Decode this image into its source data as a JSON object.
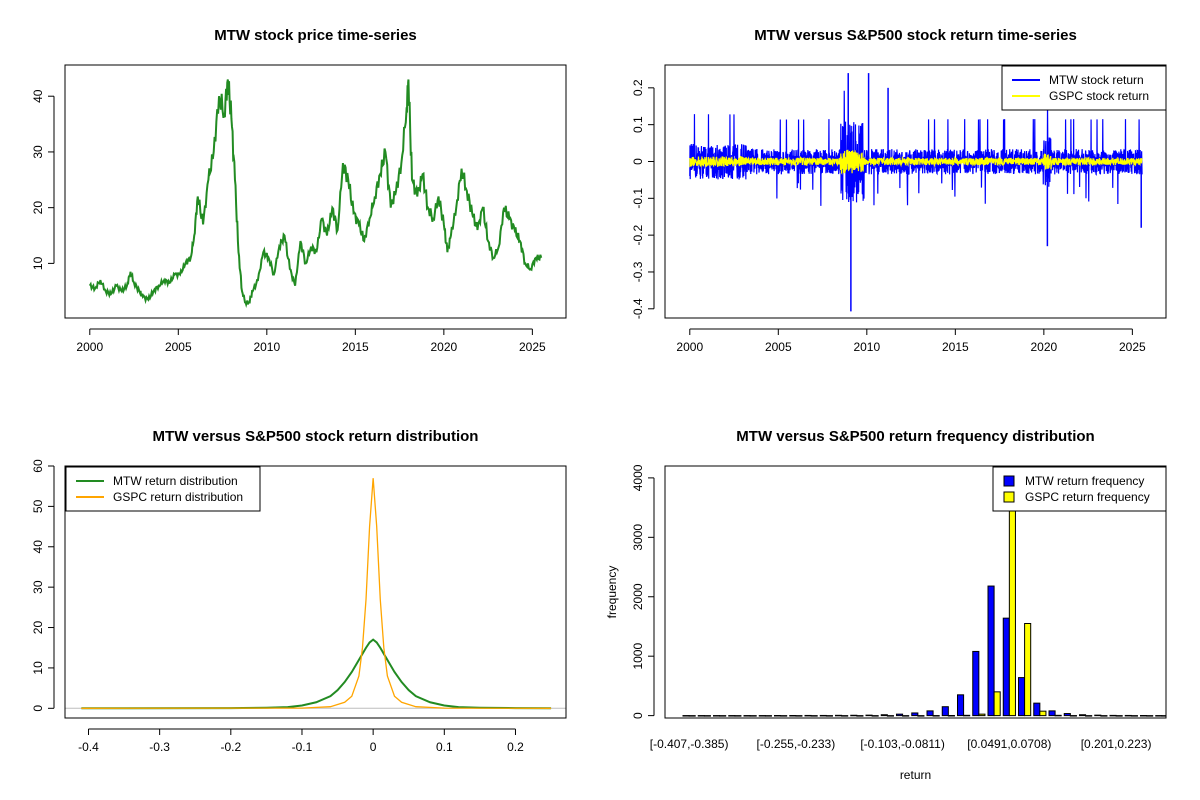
{
  "chart_data": [
    {
      "type": "line",
      "title": "MTW stock price time-series",
      "xlabel": "",
      "ylabel": "",
      "xlim": [
        1998.6,
        2026.9
      ],
      "ylim": [
        0.2,
        45.6
      ],
      "xticks": [
        2000,
        2005,
        2010,
        2015,
        2020,
        2025
      ],
      "yticks": [
        10,
        20,
        30,
        40
      ],
      "color": "#228B22",
      "series": [
        {
          "x": [
            2000.0,
            2000.3,
            2000.6,
            2000.9,
            2001.2,
            2001.5,
            2001.8,
            2002.1,
            2002.3,
            2002.5,
            2002.8,
            2003.0,
            2003.3,
            2003.6,
            2003.9,
            2004.2,
            2004.5,
            2004.8,
            2005.1,
            2005.4,
            2005.7,
            2005.9,
            2006.1,
            2006.4,
            2006.7,
            2007.0,
            2007.3,
            2007.6,
            2007.8,
            2008.0,
            2008.2,
            2008.4,
            2008.6,
            2008.8,
            2009.0,
            2009.2,
            2009.5,
            2009.8,
            2010.1,
            2010.4,
            2010.7,
            2011.0,
            2011.3,
            2011.6,
            2011.9,
            2012.2,
            2012.5,
            2012.8,
            2013.1,
            2013.4,
            2013.7,
            2014.0,
            2014.3,
            2014.6,
            2014.9,
            2015.2,
            2015.5,
            2015.8,
            2016.1,
            2016.4,
            2016.7,
            2017.0,
            2017.3,
            2017.6,
            2017.9,
            2018.0,
            2018.2,
            2018.5,
            2018.8,
            2019.1,
            2019.4,
            2019.7,
            2020.0,
            2020.2,
            2020.4,
            2020.7,
            2021.0,
            2021.3,
            2021.6,
            2021.9,
            2022.2,
            2022.5,
            2022.8,
            2023.1,
            2023.4,
            2023.7,
            2024.0,
            2024.3,
            2024.6,
            2024.9,
            2025.2,
            2025.5
          ],
          "y": [
            6,
            5.5,
            7,
            5,
            4.5,
            6,
            5,
            6,
            8.5,
            6.5,
            5,
            4,
            3.5,
            5,
            6,
            7,
            6.5,
            8,
            8,
            10,
            11,
            15,
            22,
            17,
            25,
            30,
            40,
            37,
            43,
            36,
            25,
            12,
            5,
            3,
            3,
            5,
            7,
            12,
            11,
            8,
            13,
            15,
            9,
            6,
            14,
            10,
            13,
            12,
            18,
            15,
            20,
            16,
            28,
            25,
            19,
            17,
            14,
            18,
            22,
            26,
            30,
            20,
            23,
            28,
            38,
            43,
            25,
            22,
            26,
            20,
            18,
            22,
            17,
            12,
            15,
            20,
            27,
            23,
            19,
            16,
            20,
            14,
            11,
            13,
            20,
            18,
            16,
            14,
            10,
            9,
            11,
            11
          ]
        }
      ]
    },
    {
      "type": "line",
      "title": "MTW versus S&P500 stock return time-series",
      "xlabel": "",
      "ylabel": "",
      "xlim": [
        1998.6,
        2026.9
      ],
      "ylim": [
        -0.425,
        0.262
      ],
      "xticks": [
        2000,
        2005,
        2010,
        2015,
        2020,
        2025
      ],
      "yticks": [
        -0.4,
        -0.3,
        -0.2,
        -0.1,
        0.0,
        0.1,
        0.2
      ],
      "legend": "top-right",
      "series": [
        {
          "name": "MTW stock return",
          "color": "#0000FF",
          "max": 0.24,
          "min": -0.407
        },
        {
          "name": "GSPC stock return",
          "color": "#FFFF00",
          "max": 0.11,
          "min": -0.12
        }
      ]
    },
    {
      "type": "line",
      "title": "MTW versus S&P500 stock return distribution",
      "xlabel": "",
      "ylabel": "",
      "xlim": [
        -0.433,
        0.271
      ],
      "ylim": [
        -2.4,
        60.0
      ],
      "xticks": [
        -0.4,
        -0.3,
        -0.2,
        -0.1,
        0.0,
        0.1,
        0.2
      ],
      "yticks": [
        0,
        10,
        20,
        30,
        40,
        50,
        60
      ],
      "legend": "top-left",
      "series": [
        {
          "name": "MTW return distribution",
          "color": "#228B22",
          "x": [
            -0.41,
            -0.2,
            -0.15,
            -0.12,
            -0.1,
            -0.08,
            -0.06,
            -0.05,
            -0.04,
            -0.03,
            -0.02,
            -0.01,
            -0.005,
            0,
            0.005,
            0.01,
            0.02,
            0.03,
            0.04,
            0.05,
            0.06,
            0.08,
            0.1,
            0.12,
            0.15,
            0.2,
            0.25
          ],
          "y": [
            0,
            0.05,
            0.15,
            0.3,
            0.7,
            1.5,
            3,
            4.5,
            6.5,
            9,
            12,
            15,
            16.3,
            17,
            16.3,
            15,
            12,
            9,
            6.5,
            4.5,
            3,
            1.5,
            0.7,
            0.3,
            0.15,
            0.05,
            0
          ]
        },
        {
          "name": "GSPC return distribution",
          "color": "#FFA500",
          "x": [
            -0.41,
            -0.1,
            -0.06,
            -0.04,
            -0.03,
            -0.02,
            -0.015,
            -0.01,
            -0.005,
            0,
            0.005,
            0.01,
            0.015,
            0.02,
            0.03,
            0.04,
            0.06,
            0.1,
            0.25
          ],
          "y": [
            0,
            0.05,
            0.4,
            1.5,
            3,
            8,
            15,
            27,
            45,
            57,
            45,
            27,
            15,
            8,
            3,
            1.5,
            0.4,
            0.05,
            0
          ]
        }
      ]
    },
    {
      "type": "bar",
      "title": "MTW versus S&P500 return frequency distribution",
      "xlabel": "return",
      "ylabel": "frequency",
      "ylim": [
        -40,
        4200
      ],
      "yticks": [
        0,
        1000,
        2000,
        3000,
        4000
      ],
      "xtick_labels": [
        "[-0.407,-0.385)",
        "[-0.255,-0.233)",
        "[-0.103,-0.0811)",
        "[0.0491,0.0708)",
        "[0.201,0.223)"
      ],
      "xtick_bins": [
        0,
        7,
        14,
        21,
        28
      ],
      "legend": "top-right",
      "series": [
        {
          "name": "MTW return frequency",
          "color": "#0000FF",
          "values": [
            1,
            1,
            1,
            1,
            1,
            1,
            2,
            2,
            3,
            3,
            5,
            6,
            8,
            15,
            25,
            45,
            80,
            150,
            350,
            1080,
            2180,
            1640,
            640,
            210,
            80,
            35,
            15,
            8,
            4,
            3,
            2,
            1,
            1
          ]
        },
        {
          "name": "GSPC return frequency",
          "color": "#FFFF00",
          "values": [
            0,
            0,
            0,
            0,
            0,
            0,
            0,
            0,
            0,
            0,
            0,
            0,
            0,
            0,
            0,
            0,
            1,
            2,
            5,
            25,
            400,
            4350,
            1550,
            75,
            5,
            1,
            0,
            0,
            0,
            0,
            0,
            0,
            0
          ]
        }
      ]
    }
  ]
}
